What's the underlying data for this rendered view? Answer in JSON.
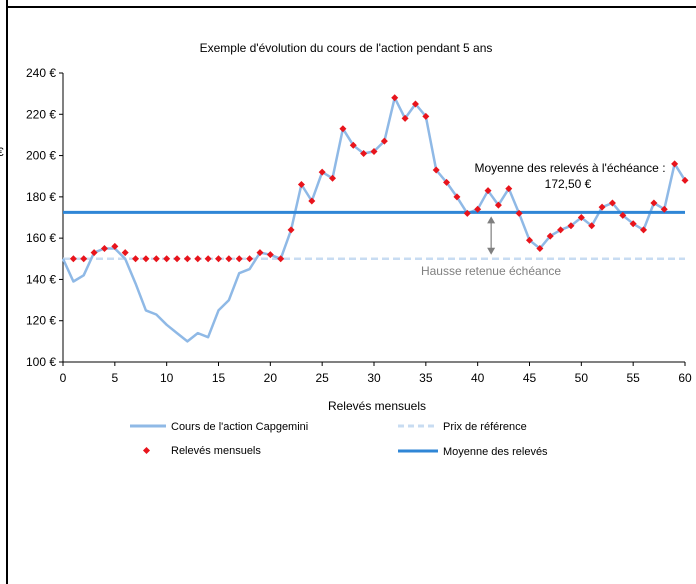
{
  "chart_data": {
    "type": "line",
    "title": "Exemple d'évolution du cours de l'action pendant 5 ans",
    "xlabel": "Relevés mensuels",
    "ylabel": "",
    "xlim": [
      0,
      60
    ],
    "ylim": [
      100,
      240
    ],
    "x_ticks": [
      0,
      5,
      10,
      15,
      20,
      25,
      30,
      35,
      40,
      45,
      50,
      55,
      60
    ],
    "y_ticks": [
      100,
      120,
      140,
      160,
      180,
      200,
      220,
      240
    ],
    "y_tick_labels": [
      "100 €",
      "120 €",
      "140 €",
      "160 €",
      "180 €",
      "200 €",
      "220 €",
      "240 €"
    ],
    "grid": false,
    "series": [
      {
        "name": "Cours de l'action Capgemini",
        "style": "line",
        "color": "#8fb9e6",
        "x": [
          0,
          1,
          2,
          3,
          4,
          5,
          6,
          7,
          8,
          9,
          10,
          11,
          12,
          13,
          14,
          15,
          16,
          17,
          18,
          19,
          20,
          21,
          22,
          23,
          24,
          25,
          26,
          27,
          28,
          29,
          30,
          31,
          32,
          33,
          34,
          35,
          36,
          37,
          38,
          39,
          40,
          41,
          42,
          43,
          44,
          45,
          46,
          47,
          48,
          49,
          50,
          51,
          52,
          53,
          54,
          55,
          56,
          57,
          58,
          59,
          60
        ],
        "values": [
          150,
          139,
          142,
          153,
          155,
          155,
          150,
          138,
          125,
          123,
          118,
          114,
          110,
          114,
          112,
          125,
          130,
          143,
          145,
          153,
          152,
          150,
          164,
          186,
          178,
          192,
          189,
          213,
          205,
          201,
          202,
          207,
          228,
          218,
          225,
          219,
          193,
          187,
          180,
          172,
          174,
          183,
          176,
          184,
          172,
          159,
          155,
          161,
          164,
          166,
          170,
          166,
          175,
          177,
          171,
          167,
          164,
          177,
          174,
          196,
          188
        ]
      },
      {
        "name": "Relevés mensuels",
        "style": "markers",
        "color": "#e8141c",
        "x": [
          1,
          2,
          3,
          4,
          5,
          6,
          7,
          8,
          9,
          10,
          11,
          12,
          13,
          14,
          15,
          16,
          17,
          18,
          19,
          20,
          21,
          22,
          23,
          24,
          25,
          26,
          27,
          28,
          29,
          30,
          31,
          32,
          33,
          34,
          35,
          36,
          37,
          38,
          39,
          40,
          41,
          42,
          43,
          44,
          45,
          46,
          47,
          48,
          49,
          50,
          51,
          52,
          53,
          54,
          55,
          56,
          57,
          58,
          59,
          60
        ],
        "values": [
          150,
          150,
          153,
          155,
          156,
          153,
          150,
          150,
          150,
          150,
          150,
          150,
          150,
          150,
          150,
          150,
          150,
          150,
          153,
          152,
          150,
          164,
          186,
          178,
          192,
          189,
          213,
          205,
          201,
          202,
          207,
          228,
          218,
          225,
          219,
          193,
          187,
          180,
          172,
          174,
          183,
          176,
          184,
          172,
          159,
          155,
          161,
          164,
          166,
          170,
          166,
          175,
          177,
          171,
          167,
          164,
          177,
          174,
          196,
          188
        ]
      },
      {
        "name": "Prix de référence",
        "style": "dashed",
        "color": "#c8dcf2",
        "x": [
          0,
          60
        ],
        "values": [
          150,
          150
        ]
      },
      {
        "name": "Moyenne des relevés",
        "style": "line",
        "color": "#2f86d6",
        "x": [
          0,
          60
        ],
        "values": [
          172.5,
          172.5
        ]
      }
    ],
    "annotations": {
      "average_label_line1": "Moyenne des relevés à l'échéance :",
      "average_label_line2": "172,50 €",
      "hausse_label": "Hausse retenue échéance"
    },
    "legend_placement": "bottom"
  },
  "left_edge_fragment": "€",
  "colors": {
    "axis": "#000000",
    "arrow": "#7f7f7f",
    "hausse_text": "#7f7f7f"
  }
}
